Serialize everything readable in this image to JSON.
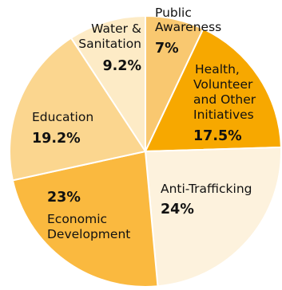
{
  "chart_data": {
    "type": "pie",
    "title": "",
    "slices": [
      {
        "label": "Public Awareness",
        "value": 7,
        "value_label": "7%",
        "color": "#F9C870"
      },
      {
        "label": "Health, Volunteer and Other Initiatives",
        "value": 17.5,
        "value_label": "17.5%",
        "color": "#F7A800"
      },
      {
        "label": "Anti-Trafficking",
        "value": 24,
        "value_label": "24%",
        "color": "#FDF2DD"
      },
      {
        "label": "Economic Development",
        "value": 23,
        "value_label": "23%",
        "color": "#FAB93F"
      },
      {
        "label": "Education",
        "value": 19.2,
        "value_label": "19.2%",
        "color": "#FBD68F"
      },
      {
        "label": "Water & Sanitation",
        "value": 9.2,
        "value_label": "9.2%",
        "color": "#FDEBC6"
      }
    ]
  }
}
